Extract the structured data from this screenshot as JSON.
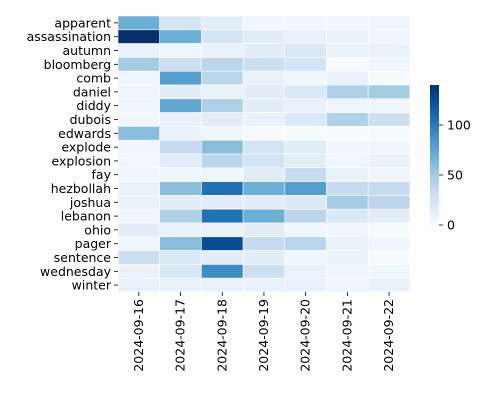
{
  "chart_data": {
    "type": "heatmap",
    "title": "",
    "xlabel": "",
    "ylabel": "",
    "x": [
      "2024-09-16",
      "2024-09-17",
      "2024-09-18",
      "2024-09-19",
      "2024-09-20",
      "2024-09-21",
      "2024-09-22"
    ],
    "y": [
      "apparent",
      "assassination",
      "autumn",
      "bloomberg",
      "comb",
      "daniel",
      "diddy",
      "dubois",
      "edwards",
      "explode",
      "explosion",
      "fay",
      "hezbollah",
      "joshua",
      "lebanon",
      "ohio",
      "pager",
      "sentence",
      "wednesday",
      "winter"
    ],
    "values": [
      [
        70,
        25,
        15,
        5,
        5,
        5,
        5
      ],
      [
        140,
        70,
        25,
        15,
        10,
        10,
        5
      ],
      [
        10,
        5,
        10,
        15,
        20,
        10,
        10
      ],
      [
        50,
        30,
        40,
        30,
        25,
        0,
        5
      ],
      [
        5,
        80,
        40,
        10,
        5,
        10,
        0
      ],
      [
        5,
        15,
        10,
        15,
        20,
        45,
        50
      ],
      [
        5,
        75,
        45,
        15,
        10,
        5,
        5
      ],
      [
        5,
        10,
        15,
        10,
        20,
        45,
        30
      ],
      [
        60,
        10,
        5,
        0,
        0,
        0,
        0
      ],
      [
        5,
        35,
        60,
        25,
        15,
        5,
        5
      ],
      [
        5,
        15,
        40,
        25,
        15,
        5,
        10
      ],
      [
        5,
        5,
        5,
        15,
        35,
        10,
        5
      ],
      [
        10,
        60,
        105,
        70,
        80,
        35,
        35
      ],
      [
        10,
        15,
        15,
        15,
        20,
        50,
        40
      ],
      [
        5,
        45,
        105,
        70,
        40,
        20,
        15
      ],
      [
        15,
        10,
        10,
        15,
        5,
        5,
        0
      ],
      [
        5,
        60,
        125,
        35,
        40,
        10,
        5
      ],
      [
        30,
        20,
        15,
        15,
        5,
        10,
        0
      ],
      [
        10,
        20,
        90,
        30,
        10,
        5,
        5
      ],
      [
        10,
        10,
        10,
        10,
        10,
        5,
        10
      ]
    ],
    "colorbar": {
      "ticks": [
        0,
        50,
        100
      ],
      "range": [
        0,
        140
      ]
    },
    "colormap": "Blues",
    "grid": true,
    "legend": "colorbar-right"
  }
}
